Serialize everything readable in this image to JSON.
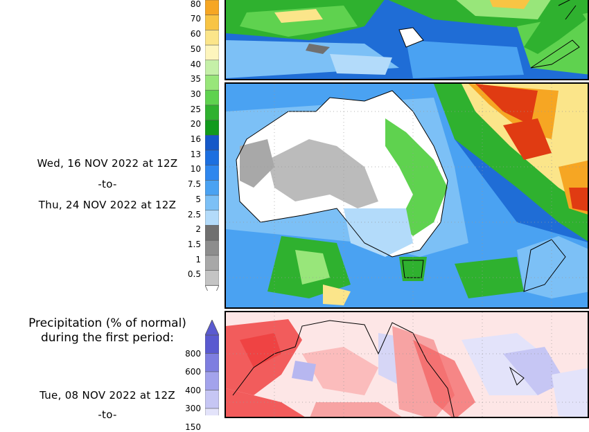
{
  "upper_section": {
    "period_from": "Wed, 16 NOV 2022 at 12Z",
    "period_sep": "-to-",
    "period_to": "Thu, 24 NOV 2022 at 12Z",
    "legend_ticks": [
      "80",
      "70",
      "60",
      "50",
      "40",
      "35",
      "30",
      "25",
      "20",
      "16",
      "13",
      "10",
      "7.5",
      "5",
      "2.5",
      "2",
      "1.5",
      "1",
      "0.5"
    ],
    "legend_colors": [
      "#f6a623",
      "#f8c444",
      "#fbe58a",
      "#fdf5bd",
      "#c5f0a8",
      "#98e67a",
      "#5fd24f",
      "#2fb12f",
      "#119a1d",
      "#1558c8",
      "#1c6fe0",
      "#2f87ee",
      "#4aa2f2",
      "#7cc0f6",
      "#b3dbfa",
      "#707070",
      "#8d8d8d",
      "#a8a8a8",
      "#c4c4c4"
    ]
  },
  "lower_section": {
    "title_line1": "Precipitation (% of normal)",
    "title_line2": "during the first period:",
    "period_from": "Tue, 08 NOV 2022 at 12Z",
    "period_sep": "-to-",
    "legend_ticks": [
      "800",
      "600",
      "400",
      "300",
      "150"
    ],
    "legend_colors": [
      "#5a5ad0",
      "#7e7ee0",
      "#a3a3ec",
      "#c6c6f4",
      "#e3e3fa"
    ]
  },
  "colors": {
    "ocean_blue": "#1f6dd6",
    "land_white": "#ffffff",
    "dry_red": "#f25c5c",
    "wet_purple": "#b7b7f0"
  }
}
